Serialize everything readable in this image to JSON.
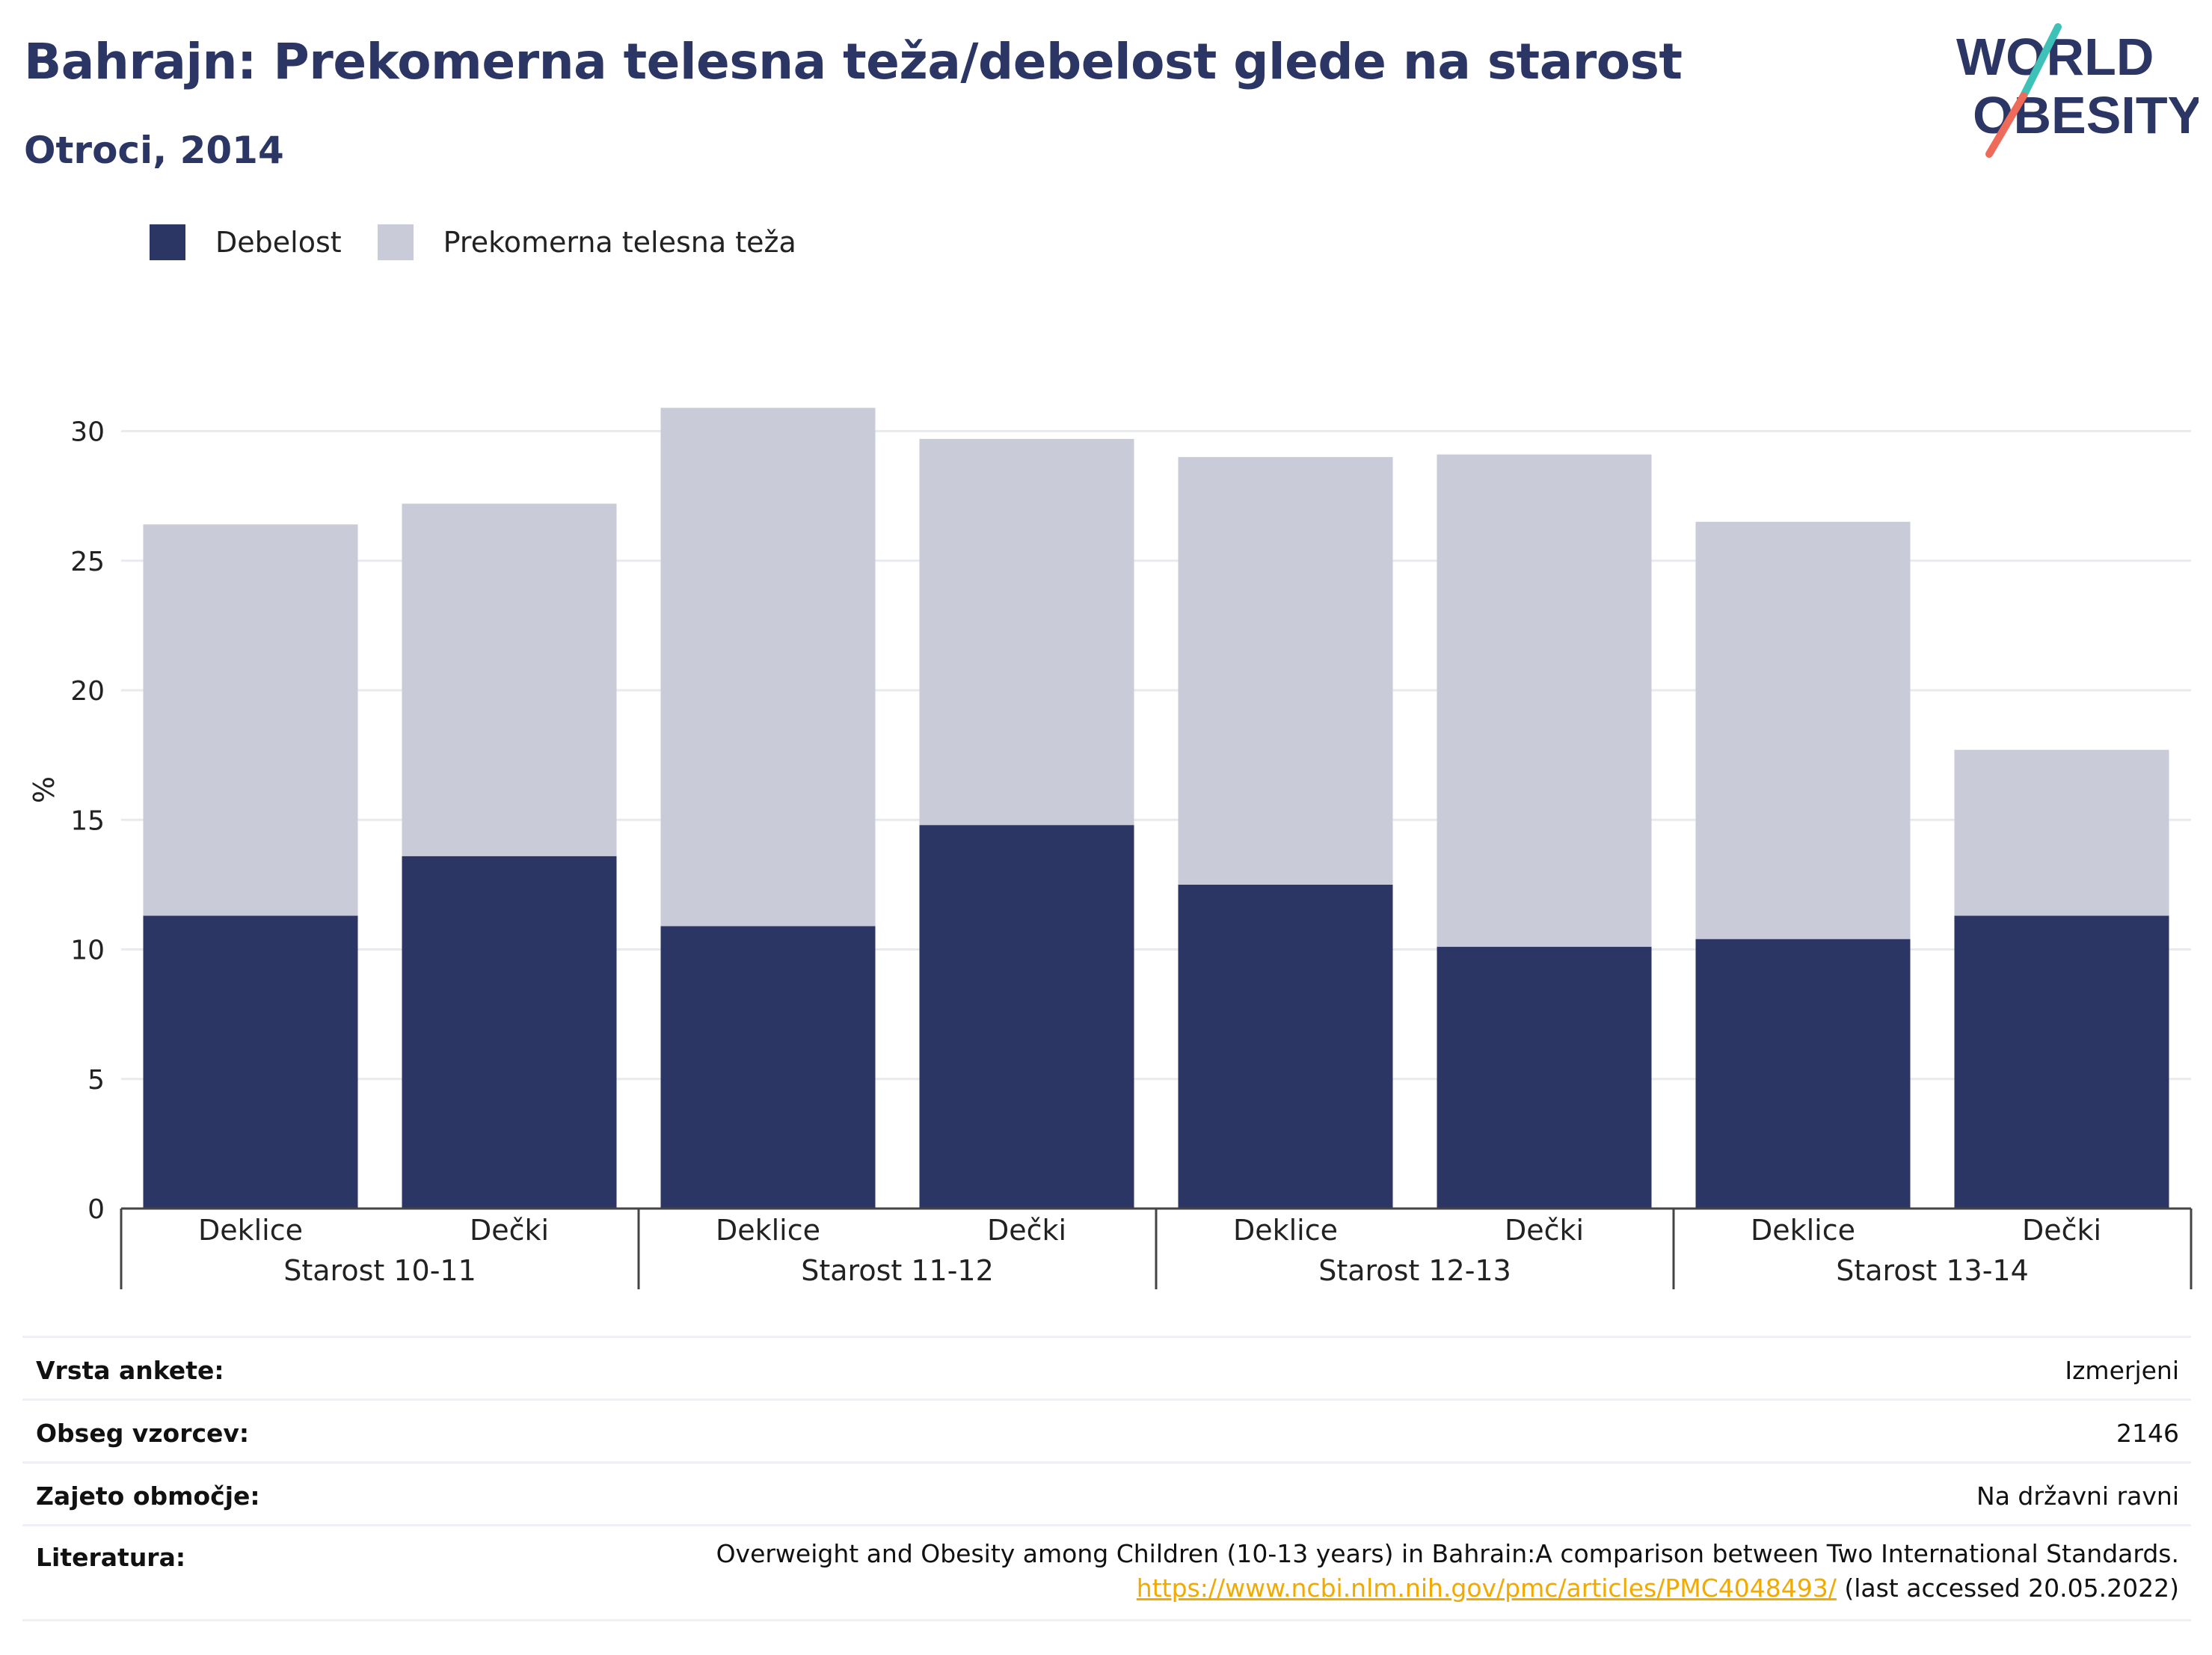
{
  "header": {
    "title": "Bahrajn: Prekomerna telesna teža/debelost glede na starost",
    "subtitle": "Otroci, 2014"
  },
  "logo": {
    "line1": "WORLD",
    "line2": "OBESITY",
    "accent_teal": "#3ec1b6",
    "accent_coral": "#ee6b5a"
  },
  "colors": {
    "obesity": "#2b3664",
    "overweight": "#cacbd8",
    "text_dark": "#2b3664",
    "link": "#f2a900"
  },
  "legend": [
    {
      "label": "Debelost",
      "color": "#2b3664"
    },
    {
      "label": "Prekomerna telesna teža",
      "color": "#cacbd8"
    }
  ],
  "chart_data": {
    "type": "bar",
    "stacked": true,
    "ylabel": "%",
    "ylim": [
      0,
      32
    ],
    "yticks": [
      0,
      5,
      10,
      15,
      20,
      25,
      30
    ],
    "grid": true,
    "legend_position": "top-left",
    "groups": [
      "Starost 10-11",
      "Starost 11-12",
      "Starost 12-13",
      "Starost 13-14"
    ],
    "categories": [
      "Deklice",
      "Dečki",
      "Deklice",
      "Dečki",
      "Deklice",
      "Dečki",
      "Deklice",
      "Dečki"
    ],
    "series": [
      {
        "name": "Debelost",
        "values": [
          11.3,
          13.6,
          10.9,
          14.8,
          12.5,
          10.1,
          10.4,
          11.3
        ]
      },
      {
        "name": "Prekomerna telesna teža",
        "values": [
          15.1,
          13.6,
          20.0,
          14.9,
          16.5,
          19.0,
          16.1,
          6.4
        ]
      }
    ]
  },
  "info": {
    "rows": [
      {
        "label": "Vrsta ankete:",
        "value": "Izmerjeni"
      },
      {
        "label": "Obseg vzorcev:",
        "value": "2146"
      },
      {
        "label": "Zajeto območje:",
        "value": "Na državni ravni"
      }
    ],
    "reference": {
      "label": "Literatura:",
      "text": "Overweight and Obesity among Children (10-13 years) in Bahrain:A comparison between Two International Standards.",
      "link": "https://www.ncbi.nlm.nih.gov/pmc/articles/PMC4048493/",
      "suffix": " (last accessed 20.05.2022)"
    }
  }
}
